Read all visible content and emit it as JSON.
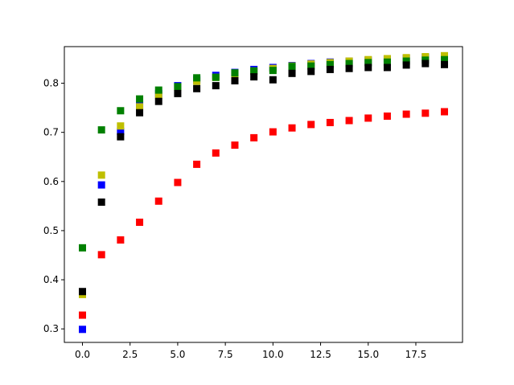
{
  "chart_data": {
    "type": "scatter",
    "title": "",
    "xlabel": "",
    "ylabel": "",
    "xlim": [
      -0.95,
      19.95
    ],
    "ylim": [
      0.2725,
      0.8745
    ],
    "x_ticks": [
      0.0,
      2.5,
      5.0,
      7.5,
      10.0,
      12.5,
      15.0,
      17.5
    ],
    "x_tick_labels": [
      "0.0",
      "2.5",
      "5.0",
      "7.5",
      "10.0",
      "12.5",
      "15.0",
      "17.5"
    ],
    "y_ticks": [
      0.3,
      0.4,
      0.5,
      0.6,
      0.7,
      0.8
    ],
    "y_tick_labels": [
      "0.3",
      "0.4",
      "0.5",
      "0.6",
      "0.7",
      "0.8"
    ],
    "grid": false,
    "legend": "none",
    "marker": "square",
    "x": [
      0,
      1,
      2,
      3,
      4,
      5,
      6,
      7,
      8,
      9,
      10,
      11,
      12,
      13,
      14,
      15,
      16,
      17,
      18,
      19
    ],
    "series": [
      {
        "color": "#ff0000",
        "values": [
          0.328,
          0.451,
          0.481,
          0.517,
          0.56,
          0.598,
          0.635,
          0.658,
          0.674,
          0.689,
          0.701,
          0.709,
          0.716,
          0.72,
          0.724,
          0.729,
          0.733,
          0.737,
          0.739,
          0.742
        ]
      },
      {
        "color": "#0000ff",
        "values": [
          0.299,
          0.593,
          0.702,
          0.755,
          0.779,
          0.795,
          0.807,
          0.816,
          0.822,
          0.828,
          0.832,
          0.836,
          0.84,
          0.843,
          0.845,
          0.847,
          0.849,
          0.851,
          0.853,
          0.854
        ]
      },
      {
        "color": "#bfbf00",
        "values": [
          0.37,
          0.613,
          0.713,
          0.752,
          0.776,
          0.792,
          0.804,
          0.812,
          0.819,
          0.825,
          0.83,
          0.835,
          0.839,
          0.842,
          0.845,
          0.848,
          0.85,
          0.852,
          0.854,
          0.856
        ]
      },
      {
        "color": "#008000",
        "values": [
          0.465,
          0.705,
          0.744,
          0.768,
          0.786,
          0.793,
          0.811,
          0.812,
          0.821,
          0.825,
          0.826,
          0.834,
          0.835,
          0.838,
          0.84,
          0.842,
          0.843,
          0.845,
          0.847,
          0.848
        ]
      },
      {
        "color": "#000000",
        "values": [
          0.376,
          0.558,
          0.691,
          0.74,
          0.763,
          0.779,
          0.789,
          0.795,
          0.805,
          0.813,
          0.807,
          0.82,
          0.824,
          0.828,
          0.83,
          0.832,
          0.832,
          0.837,
          0.84,
          0.838
        ]
      }
    ]
  }
}
